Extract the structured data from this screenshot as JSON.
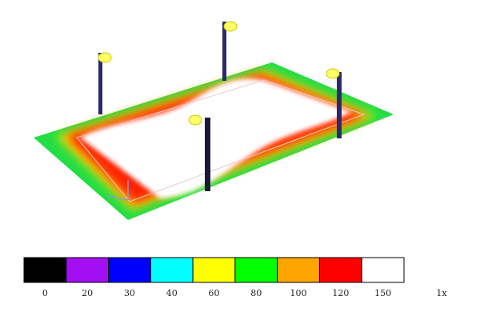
{
  "legend": {
    "items": [
      {
        "label": 0,
        "color": "#000000"
      },
      {
        "label": 20,
        "color": "#a30ff2"
      },
      {
        "label": 30,
        "color": "#0000ff"
      },
      {
        "label": 40,
        "color": "#00ffff"
      },
      {
        "label": 60,
        "color": "#ffff00"
      },
      {
        "label": 80,
        "color": "#00ff00"
      },
      {
        "label": 100,
        "color": "#ffa500"
      },
      {
        "label": 120,
        "color": "#ff0000"
      },
      {
        "label": 150,
        "color": "#ffffff"
      }
    ],
    "unit": "1x"
  }
}
